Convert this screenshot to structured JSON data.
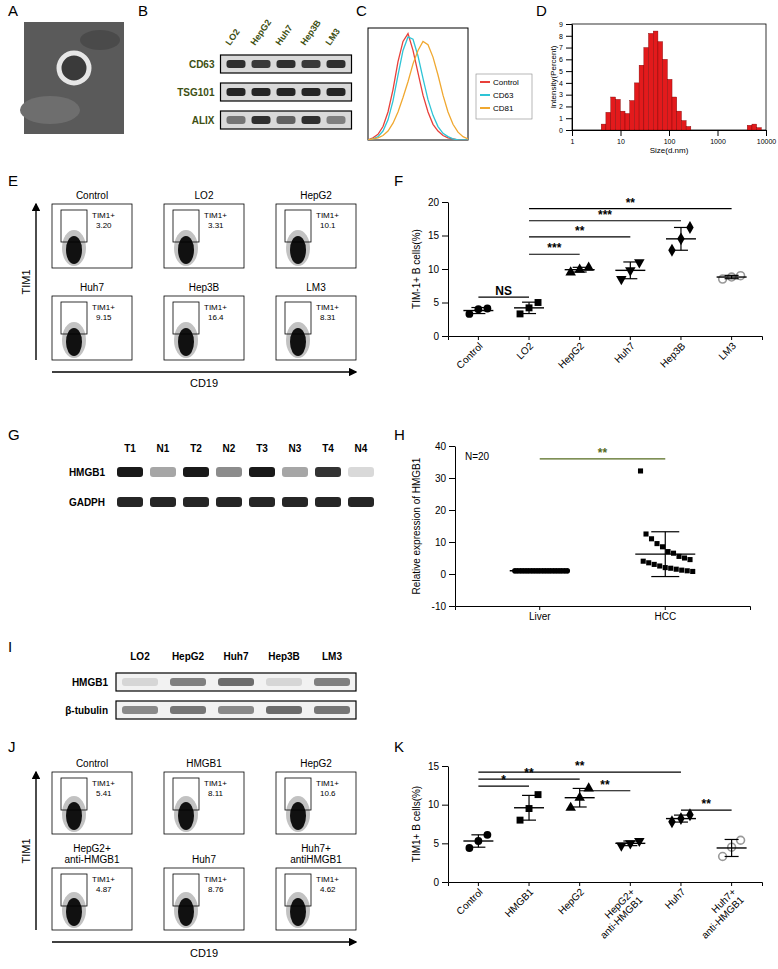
{
  "chart_data": [
    {
      "panel": "C",
      "type": "line",
      "tick_labels": false,
      "legend": "right",
      "x": [
        0,
        5,
        10,
        15,
        20,
        25,
        30,
        35,
        40,
        45,
        50,
        55,
        60,
        65,
        70,
        75,
        80,
        85,
        90,
        95,
        100
      ],
      "xlim": [
        0,
        100
      ],
      "ylim": [
        0,
        100
      ],
      "series": [
        {
          "name": "Control",
          "color": "#e8403a",
          "values": [
            0,
            2,
            5,
            12,
            25,
            45,
            70,
            88,
            95,
            80,
            60,
            40,
            25,
            14,
            8,
            4,
            2,
            1,
            0,
            0,
            0
          ]
        },
        {
          "name": "CD63",
          "color": "#2ec4d6",
          "values": [
            0,
            1,
            3,
            8,
            18,
            35,
            58,
            80,
            92,
            90,
            75,
            55,
            36,
            22,
            12,
            6,
            3,
            1,
            0,
            0,
            0
          ]
        },
        {
          "name": "CD81",
          "color": "#f0a830",
          "values": [
            0,
            1,
            2,
            4,
            8,
            15,
            25,
            38,
            52,
            68,
            80,
            88,
            85,
            74,
            58,
            40,
            25,
            14,
            7,
            3,
            1
          ]
        }
      ]
    },
    {
      "panel": "D",
      "type": "histogram",
      "x_label": "Size(d.nm)",
      "y_label": "Intensity(Percent)",
      "log": "x",
      "color": "#e31a1c",
      "bins": [
        4,
        5,
        6.3,
        7.9,
        9.9,
        12.4,
        15.5,
        19.4,
        24.2,
        30.3,
        37.8,
        47.3,
        59.1,
        73.9,
        92.4,
        115.5,
        144.4,
        180.5,
        225.6,
        282,
        352.5,
        440.6,
        550.8,
        688.5,
        860.6,
        1075.8,
        1344.7,
        1680.9,
        2101.1,
        2626.4,
        3283,
        4103.8,
        5129.7,
        6412.1,
        8015.2
      ],
      "values": [
        0.5,
        1.5,
        2.8,
        2.6,
        1.6,
        1.4,
        2.5,
        4,
        5.5,
        7,
        8.2,
        8.4,
        7.5,
        6,
        4.3,
        2.8,
        1.6,
        0.8,
        0.3,
        0,
        0,
        0,
        0,
        0,
        0,
        0,
        0,
        0,
        0,
        0,
        0,
        0.4,
        0.5,
        0.2
      ],
      "xlim": [
        1,
        10000
      ],
      "xticks": [
        1,
        10,
        100,
        1000,
        10000
      ],
      "ylim": [
        0,
        9
      ],
      "yticks": [
        0,
        1,
        2,
        3,
        4,
        5,
        6,
        7,
        8,
        9
      ]
    },
    {
      "panel": "F",
      "type": "scatter",
      "y_label": "TIM-1+ B cells(%)",
      "categories": [
        "Control",
        "LO2",
        "HepG2",
        "Huh7",
        "Hep3B",
        "LM3"
      ],
      "values": [
        [
          3.3,
          4.0,
          4.1
        ],
        [
          3.3,
          4.2,
          5.0
        ],
        [
          9.5,
          9.9,
          10.2
        ],
        [
          8.5,
          9.8,
          11.0
        ],
        [
          12.8,
          14.5,
          16.2
        ],
        [
          8.5,
          8.8,
          9.0
        ]
      ],
      "mean": [
        3.8,
        4.2,
        9.9,
        9.8,
        14.5,
        8.8
      ],
      "sd": [
        0.45,
        0.85,
        0.35,
        1.25,
        1.7,
        0.25
      ],
      "colors": [
        "#000000",
        "#000000",
        "#000000",
        "#000000",
        "#000000",
        "#999999"
      ],
      "markers": [
        "circle",
        "square",
        "triangle",
        "triangle-down",
        "diamond",
        "circle-open"
      ],
      "ylim": [
        0,
        20
      ],
      "yticks": [
        0,
        5,
        10,
        15,
        20
      ],
      "annotations": [
        {
          "from": 0,
          "to": 1,
          "label": "NS",
          "y": 5.8
        },
        {
          "from": 1,
          "to": 2,
          "label": "***",
          "y": 12.2
        },
        {
          "from": 1,
          "to": 3,
          "label": "**",
          "y": 14.8
        },
        {
          "from": 1,
          "to": 4,
          "label": "***",
          "y": 17.2
        },
        {
          "from": 1,
          "to": 5,
          "label": "**",
          "y": 19.0
        }
      ]
    },
    {
      "panel": "H",
      "type": "scatter",
      "y_label": "Relative expression of HMGB1",
      "note": "N=20",
      "categories": [
        "Liver",
        "HCC"
      ],
      "values": [
        [
          1,
          1,
          1,
          1,
          1,
          1,
          1,
          1,
          1,
          1,
          1,
          1,
          1,
          1,
          1,
          1,
          1,
          1,
          1,
          1
        ],
        [
          32.2,
          12.5,
          11,
          9.5,
          8.5,
          7,
          6.5,
          5.5,
          5,
          4.5,
          4,
          3.5,
          3,
          2.5,
          2,
          1.8,
          1.5,
          1.2,
          1,
          0.8
        ]
      ],
      "mean": [
        1,
        6.2
      ],
      "sd": [
        0.1,
        7
      ],
      "colors": [
        "#000000",
        "#000000"
      ],
      "markers": [
        "circle",
        "square"
      ],
      "ylim": [
        -10,
        40
      ],
      "yticks": [
        -10,
        0,
        10,
        20,
        30,
        40
      ],
      "annotations": [
        {
          "from": 0,
          "to": 1,
          "label": "**",
          "y": 36,
          "color": "#556b1e"
        }
      ]
    },
    {
      "panel": "K",
      "type": "scatter",
      "y_label": "TIM1+ B cells(%)",
      "categories": [
        "Control",
        "HMGB1",
        "HepG2",
        "HepG2+\nanti-HMGB1",
        "Huh7",
        "Huh7+\nanti-HMGB1"
      ],
      "values": [
        [
          4.4,
          5.3,
          6.1
        ],
        [
          8.0,
          9.5,
          11.3
        ],
        [
          9.6,
          10.9,
          12.1
        ],
        [
          4.7,
          5.0,
          5.3
        ],
        [
          7.8,
          8.2,
          8.7
        ],
        [
          3.3,
          4.5,
          5.4
        ]
      ],
      "mean": [
        5.3,
        9.6,
        10.9,
        5.0,
        8.2,
        4.4
      ],
      "sd": [
        0.8,
        1.6,
        1.2,
        0.3,
        0.45,
        1.1
      ],
      "colors": [
        "#000000",
        "#000000",
        "#000000",
        "#000000",
        "#000000",
        "#999999"
      ],
      "markers": [
        "circle",
        "square",
        "triangle",
        "triangle-down",
        "diamond",
        "circle-open"
      ],
      "ylim": [
        0,
        15
      ],
      "yticks": [
        0,
        5,
        10,
        15
      ],
      "annotations": [
        {
          "from": 0,
          "to": 4,
          "label": "**",
          "y": 14.2
        },
        {
          "from": 0,
          "to": 2,
          "label": "**",
          "y": 13.3
        },
        {
          "from": 0,
          "to": 1,
          "label": "*",
          "y": 12.4
        },
        {
          "from": 2,
          "to": 3,
          "label": "**",
          "y": 11.8
        },
        {
          "from": 4,
          "to": 5,
          "label": "**",
          "y": 9.3
        }
      ]
    }
  ],
  "figure": {
    "A": {
      "panel": "A"
    },
    "B": {
      "panel": "B",
      "lanes": [
        "LO2",
        "HepG2",
        "Huh7",
        "Hep3B",
        "LM3"
      ],
      "rows": [
        {
          "label": "CD63",
          "intensity": [
            0.85,
            0.8,
            0.85,
            0.8,
            0.85
          ]
        },
        {
          "label": "TSG101",
          "intensity": [
            0.9,
            0.9,
            0.9,
            0.9,
            0.9
          ]
        },
        {
          "label": "ALIX",
          "intensity": [
            0.5,
            0.85,
            0.6,
            0.85,
            0.45
          ]
        }
      ]
    },
    "E": {
      "panel": "E",
      "y_label": "TIM1",
      "x_label": "CD19",
      "gate": "TIM1+",
      "plots": [
        {
          "title": [
            "Control"
          ],
          "value": "3.20"
        },
        {
          "title": [
            "LO2"
          ],
          "value": "3.31"
        },
        {
          "title": [
            "HepG2"
          ],
          "value": "10.1"
        },
        {
          "title": [
            "Huh7"
          ],
          "value": "9.15"
        },
        {
          "title": [
            "Hep3B"
          ],
          "value": "16.4"
        },
        {
          "title": [
            "LM3"
          ],
          "value": "8.31"
        }
      ]
    },
    "G": {
      "panel": "G",
      "lanes": [
        "T1",
        "N1",
        "T2",
        "N2",
        "T3",
        "N3",
        "T4",
        "N4"
      ],
      "rows": [
        {
          "label": "HMGB1",
          "intensity": [
            0.9,
            0.35,
            0.9,
            0.45,
            0.9,
            0.35,
            0.8,
            0.15
          ]
        },
        {
          "label": "GADPH",
          "intensity": [
            0.85,
            0.85,
            0.85,
            0.85,
            0.85,
            0.85,
            0.85,
            0.85
          ]
        }
      ]
    },
    "I": {
      "panel": "I",
      "lanes": [
        "LO2",
        "HepG2",
        "Huh7",
        "Hep3B",
        "LM3"
      ],
      "rows": [
        {
          "label": "HMGB1",
          "intensity": [
            0.15,
            0.6,
            0.7,
            0.15,
            0.6
          ]
        },
        {
          "label": "β-tubulin",
          "intensity": [
            0.55,
            0.65,
            0.55,
            0.7,
            0.65
          ]
        }
      ]
    },
    "J": {
      "panel": "J",
      "y_label": "TIM1",
      "x_label": "CD19",
      "gate": "TIM1+",
      "plots": [
        {
          "title": [
            "Control"
          ],
          "value": "5.41"
        },
        {
          "title": [
            "HMGB1"
          ],
          "value": "8.11"
        },
        {
          "title": [
            "HepG2"
          ],
          "value": "10.6"
        },
        {
          "title": [
            "HepG2+",
            "anti-HMGB1"
          ],
          "value": "4.87"
        },
        {
          "title": [
            "Huh7"
          ],
          "value": "8.76"
        },
        {
          "title": [
            "Huh7+",
            "antiHMGB1"
          ],
          "value": "4.62"
        }
      ]
    }
  }
}
